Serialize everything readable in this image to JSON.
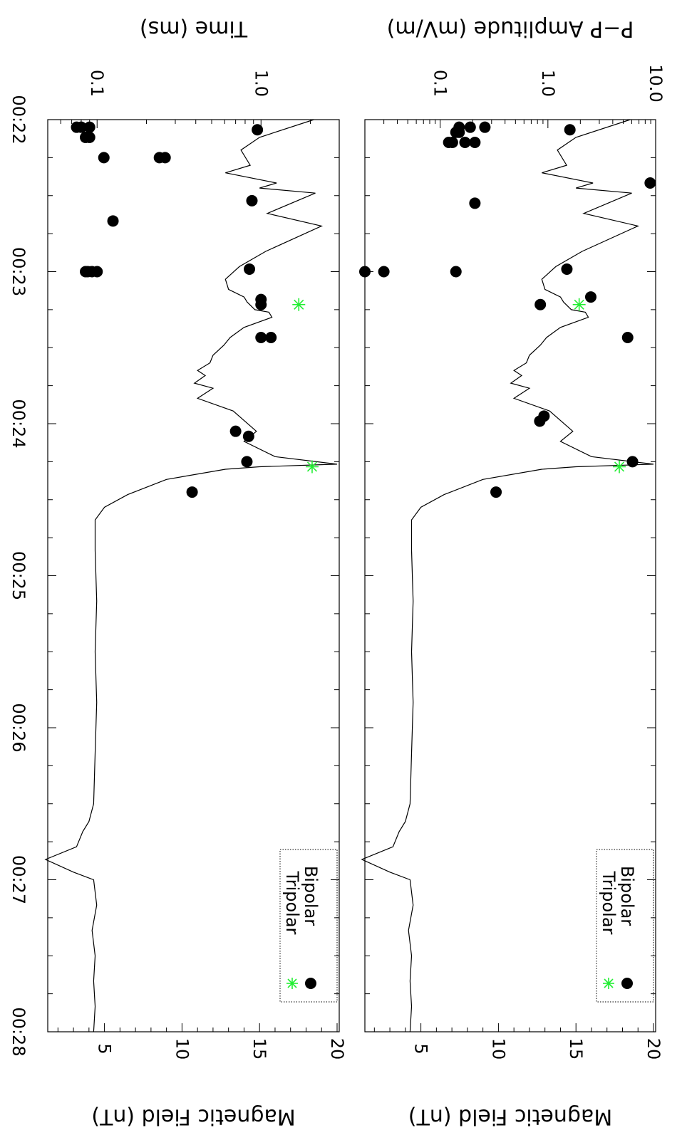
{
  "colors": {
    "bipolar": "#000000",
    "tripolar": "#22ee33",
    "line": "#000000"
  },
  "time_ticks": [
    "00:22",
    "00:23",
    "00:24",
    "00:25",
    "00:26",
    "00:27",
    "00:28"
  ],
  "legend": {
    "bipolar": "Bipolar",
    "tripolar": "Tripolar"
  },
  "chart_data": [
    {
      "type": "scatter",
      "ylabel": "P−P Amplitude (mV/m)",
      "y2label": "Magnetic Field (nT)",
      "xticks": [
        "00:22",
        "00:23",
        "00:24",
        "00:25",
        "00:26",
        "00:27",
        "00:28"
      ],
      "yticks": [
        "0.1",
        "1.0",
        "10.0"
      ],
      "y2ticks": [
        "5",
        "10",
        "15",
        "20"
      ],
      "yscale": "log",
      "ylim": [
        0.02,
        10
      ],
      "y2lim": [
        1,
        20
      ],
      "grid": false,
      "legend_position": "bottom-right",
      "series": [
        {
          "name": "Bipolar",
          "marker": "filled-circle",
          "points": [
            {
              "t": "00:22:03",
              "y": 0.15
            },
            {
              "t": "00:22:03",
              "y": 0.19
            },
            {
              "t": "00:22:03",
              "y": 0.26
            },
            {
              "t": "00:22:04",
              "y": 1.6
            },
            {
              "t": "00:22:05",
              "y": 0.15
            },
            {
              "t": "00:22:05",
              "y": 0.14
            },
            {
              "t": "00:22:09",
              "y": 0.13
            },
            {
              "t": "00:22:09",
              "y": 0.12
            },
            {
              "t": "00:22:09",
              "y": 0.17
            },
            {
              "t": "00:22:09",
              "y": 0.21
            },
            {
              "t": "00:22:25",
              "y": 8.9
            },
            {
              "t": "00:22:33",
              "y": 0.21
            },
            {
              "t": "00:23:00",
              "y": 0.02
            },
            {
              "t": "00:23:00",
              "y": 0.03
            },
            {
              "t": "00:23:00",
              "y": 0.14
            },
            {
              "t": "00:22:59",
              "y": 1.5
            },
            {
              "t": "00:23:10",
              "y": 2.5
            },
            {
              "t": "00:23:13",
              "y": 0.85
            },
            {
              "t": "00:23:26",
              "y": 5.5
            },
            {
              "t": "00:23:57",
              "y": 0.92
            },
            {
              "t": "00:23:59",
              "y": 0.84
            },
            {
              "t": "00:24:15",
              "y": 6.1
            },
            {
              "t": "00:24:27",
              "y": 0.33
            }
          ]
        },
        {
          "name": "Tripolar",
          "marker": "asterisk",
          "points": [
            {
              "t": "00:23:13",
              "y": 1.95
            },
            {
              "t": "00:24:17",
              "y": 4.6
            }
          ]
        }
      ],
      "magnetic_field": {
        "unit": "nT",
        "points": [
          [
            "00:22:00",
            18.5
          ],
          [
            "00:22:07",
            15.0
          ],
          [
            "00:22:12",
            13.8
          ],
          [
            "00:22:18",
            14.4
          ],
          [
            "00:22:21",
            12.8
          ],
          [
            "00:22:25",
            16.1
          ],
          [
            "00:22:27",
            15.0
          ],
          [
            "00:22:29",
            18.6
          ],
          [
            "00:22:37",
            15.5
          ],
          [
            "00:22:42",
            19.0
          ],
          [
            "00:22:52",
            15.4
          ],
          [
            "00:22:58",
            13.7
          ],
          [
            "00:23:03",
            12.8
          ],
          [
            "00:23:07",
            13.0
          ],
          [
            "00:23:10",
            14.0
          ],
          [
            "00:23:12",
            14.2
          ],
          [
            "00:23:15",
            14.7
          ],
          [
            "00:23:16",
            15.6
          ],
          [
            "00:23:18",
            15.8
          ],
          [
            "00:23:22",
            14.0
          ],
          [
            "00:23:26",
            13.1
          ],
          [
            "00:23:29",
            12.7
          ],
          [
            "00:23:33",
            12.0
          ],
          [
            "00:23:36",
            11.8
          ],
          [
            "00:23:39",
            11.0
          ],
          [
            "00:23:41",
            11.5
          ],
          [
            "00:23:44",
            10.8
          ],
          [
            "00:23:46",
            12.0
          ],
          [
            "00:23:50",
            11.0
          ],
          [
            "00:23:55",
            13.3
          ],
          [
            "00:24:03",
            14.8
          ],
          [
            "00:24:07",
            14.0
          ],
          [
            "00:24:13",
            16.0
          ],
          [
            "00:24:16",
            20.0
          ],
          [
            "00:24:17",
            15.0
          ],
          [
            "00:24:18",
            12.8
          ],
          [
            "00:24:22",
            9.0
          ],
          [
            "00:24:28",
            6.5
          ],
          [
            "00:24:33",
            5.0
          ],
          [
            "00:24:38",
            4.4
          ],
          [
            "00:24:50",
            4.4
          ],
          [
            "00:25:10",
            4.5
          ],
          [
            "00:25:30",
            4.4
          ],
          [
            "00:25:50",
            4.5
          ],
          [
            "00:26:10",
            4.4
          ],
          [
            "00:26:30",
            4.3
          ],
          [
            "00:26:37",
            4.0
          ],
          [
            "00:26:41",
            3.6
          ],
          [
            "00:26:47",
            3.2
          ],
          [
            "00:26:52",
            1.2
          ],
          [
            "00:26:57",
            3.0
          ],
          [
            "00:27:00",
            4.3
          ],
          [
            "00:27:10",
            4.5
          ],
          [
            "00:27:20",
            4.2
          ],
          [
            "00:27:30",
            4.4
          ],
          [
            "00:27:40",
            4.3
          ],
          [
            "00:27:50",
            4.4
          ],
          [
            "00:28:00",
            4.3
          ]
        ]
      }
    },
    {
      "type": "scatter",
      "ylabel": "Time (ms)",
      "y2label": "Magnetic Field (nT)",
      "xticks": [
        "00:22",
        "00:23",
        "00:24",
        "00:25",
        "00:26",
        "00:27",
        "00:28"
      ],
      "yticks": [
        "0.1",
        "1.0"
      ],
      "y2ticks": [
        "5",
        "10",
        "15",
        "20"
      ],
      "yscale": "log",
      "ylim": [
        0.05,
        3
      ],
      "y2lim": [
        1,
        20
      ],
      "grid": false,
      "legend_position": "bottom-right",
      "series": [
        {
          "name": "Bipolar",
          "marker": "filled-circle",
          "points": [
            {
              "t": "00:22:03",
              "y": 0.075
            },
            {
              "t": "00:22:03",
              "y": 0.08
            },
            {
              "t": "00:22:03",
              "y": 0.09
            },
            {
              "t": "00:22:04",
              "y": 0.95
            },
            {
              "t": "00:22:07",
              "y": 0.085
            },
            {
              "t": "00:22:07",
              "y": 0.09
            },
            {
              "t": "00:22:15",
              "y": 0.11
            },
            {
              "t": "00:22:15",
              "y": 0.24
            },
            {
              "t": "00:22:15",
              "y": 0.26
            },
            {
              "t": "00:22:32",
              "y": 0.88
            },
            {
              "t": "00:22:40",
              "y": 0.125
            },
            {
              "t": "00:22:59",
              "y": 0.85
            },
            {
              "t": "00:23:00",
              "y": 0.085
            },
            {
              "t": "00:23:00",
              "y": 0.088
            },
            {
              "t": "00:23:00",
              "y": 0.093
            },
            {
              "t": "00:23:00",
              "y": 0.1
            },
            {
              "t": "00:23:11",
              "y": 1.0
            },
            {
              "t": "00:23:13",
              "y": 1.0
            },
            {
              "t": "00:23:26",
              "y": 1.0
            },
            {
              "t": "00:23:26",
              "y": 1.15
            },
            {
              "t": "00:24:03",
              "y": 0.7
            },
            {
              "t": "00:24:05",
              "y": 0.84
            },
            {
              "t": "00:24:15",
              "y": 0.82
            },
            {
              "t": "00:24:27",
              "y": 0.38
            }
          ]
        },
        {
          "name": "Tripolar",
          "marker": "asterisk",
          "points": [
            {
              "t": "00:23:13",
              "y": 1.7
            },
            {
              "t": "00:24:17",
              "y": 2.05
            }
          ]
        }
      ],
      "magnetic_field": {
        "unit": "nT",
        "points": [
          [
            "00:22:00",
            18.5
          ],
          [
            "00:22:07",
            15.0
          ],
          [
            "00:22:12",
            13.8
          ],
          [
            "00:22:18",
            14.4
          ],
          [
            "00:22:21",
            12.8
          ],
          [
            "00:22:25",
            16.1
          ],
          [
            "00:22:27",
            15.0
          ],
          [
            "00:22:29",
            18.6
          ],
          [
            "00:22:37",
            15.5
          ],
          [
            "00:22:42",
            19.0
          ],
          [
            "00:22:52",
            15.4
          ],
          [
            "00:22:58",
            13.7
          ],
          [
            "00:23:03",
            12.8
          ],
          [
            "00:23:07",
            13.0
          ],
          [
            "00:23:10",
            14.0
          ],
          [
            "00:23:12",
            14.2
          ],
          [
            "00:23:15",
            14.7
          ],
          [
            "00:23:16",
            15.6
          ],
          [
            "00:23:18",
            15.8
          ],
          [
            "00:23:22",
            14.0
          ],
          [
            "00:23:26",
            13.1
          ],
          [
            "00:23:29",
            12.7
          ],
          [
            "00:23:33",
            12.0
          ],
          [
            "00:23:36",
            11.8
          ],
          [
            "00:23:39",
            11.0
          ],
          [
            "00:23:41",
            11.5
          ],
          [
            "00:23:44",
            10.8
          ],
          [
            "00:23:46",
            12.0
          ],
          [
            "00:23:50",
            11.0
          ],
          [
            "00:23:55",
            13.3
          ],
          [
            "00:24:03",
            14.8
          ],
          [
            "00:24:07",
            14.0
          ],
          [
            "00:24:13",
            16.0
          ],
          [
            "00:24:16",
            20.0
          ],
          [
            "00:24:17",
            15.0
          ],
          [
            "00:24:18",
            12.8
          ],
          [
            "00:24:22",
            9.0
          ],
          [
            "00:24:28",
            6.5
          ],
          [
            "00:24:33",
            5.0
          ],
          [
            "00:24:38",
            4.4
          ],
          [
            "00:24:50",
            4.4
          ],
          [
            "00:25:10",
            4.5
          ],
          [
            "00:25:30",
            4.4
          ],
          [
            "00:25:50",
            4.5
          ],
          [
            "00:26:10",
            4.4
          ],
          [
            "00:26:30",
            4.3
          ],
          [
            "00:26:37",
            4.0
          ],
          [
            "00:26:41",
            3.6
          ],
          [
            "00:26:47",
            3.2
          ],
          [
            "00:26:52",
            1.2
          ],
          [
            "00:26:57",
            3.0
          ],
          [
            "00:27:00",
            4.3
          ],
          [
            "00:27:10",
            4.5
          ],
          [
            "00:27:20",
            4.2
          ],
          [
            "00:27:30",
            4.4
          ],
          [
            "00:27:40",
            4.3
          ],
          [
            "00:27:50",
            4.4
          ],
          [
            "00:28:00",
            4.3
          ]
        ]
      }
    }
  ]
}
